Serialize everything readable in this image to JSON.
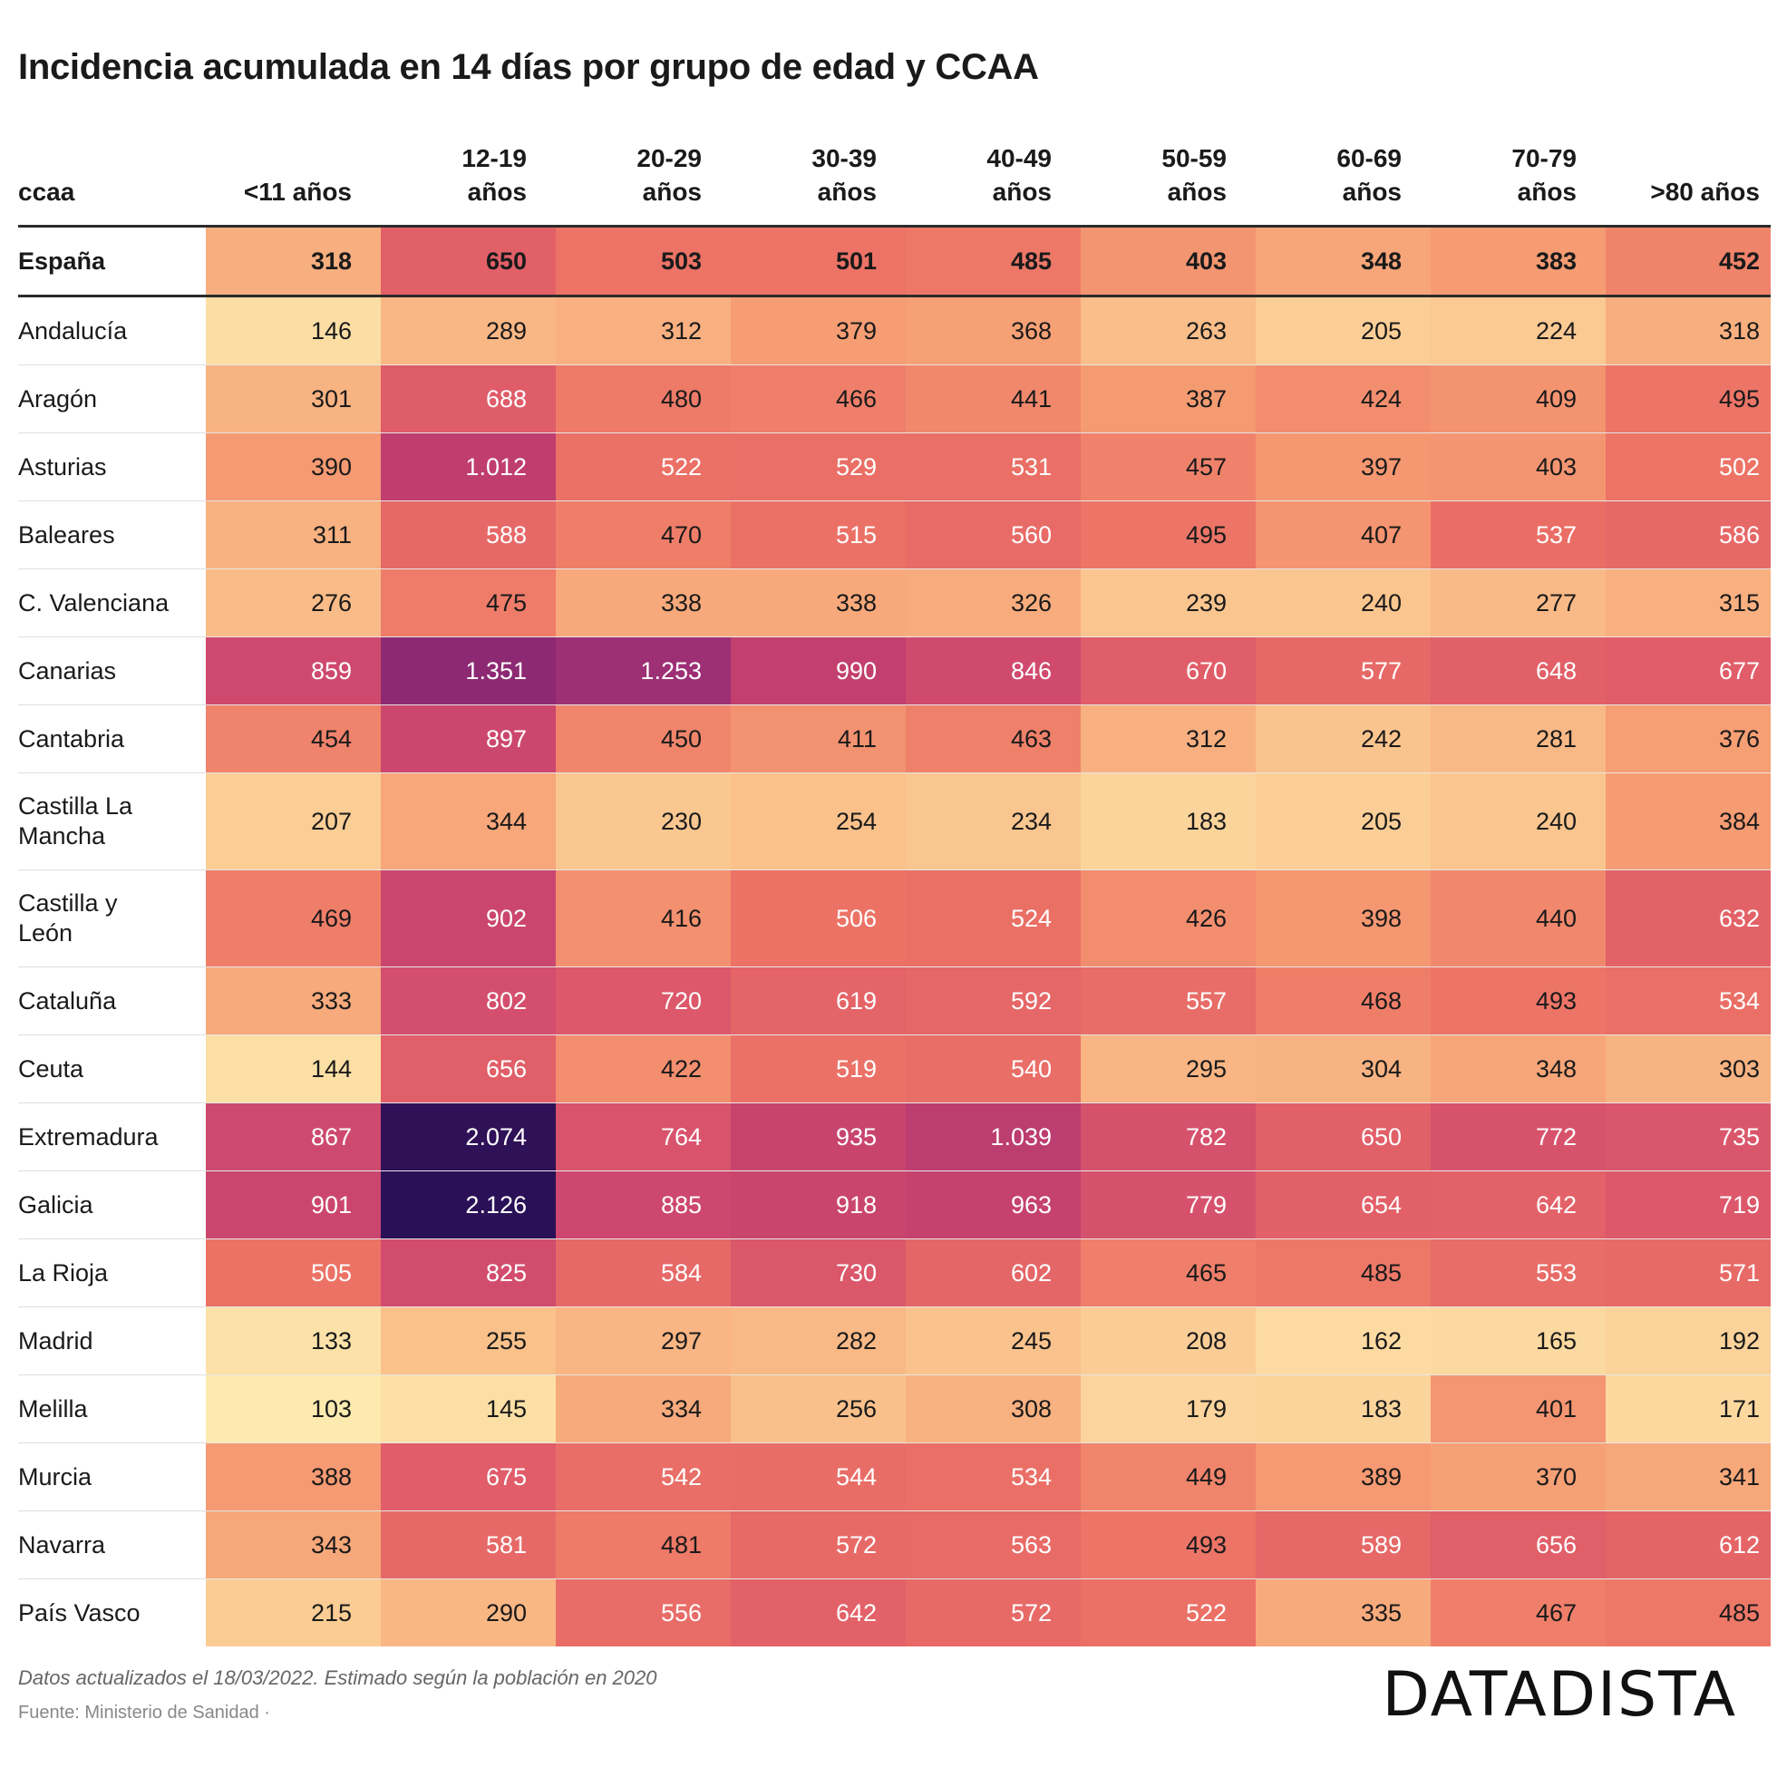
{
  "title": "Incidencia acumulada en 14 días por grupo de edad y CCAA",
  "footnote": "Datos actualizados el 18/03/2022. Estimado según la población en 2020",
  "source": "Fuente: Ministerio de Sanidad · ",
  "logo": "DATADISTA",
  "color_scale": {
    "low": "#fce6a6",
    "mid_low": "#f9a77a",
    "mid": "#ea6b65",
    "mid_high": "#c23f6e",
    "high": "#8d2d7a",
    "max": "#2a1056"
  },
  "chart_data": {
    "type": "heatmap",
    "title": "Incidencia acumulada en 14 días por grupo de edad y CCAA",
    "row_header": "ccaa",
    "columns": [
      "<11 años",
      "12-19 años",
      "20-29 años",
      "30-39 años",
      "40-49 años",
      "50-59 años",
      "60-69 años",
      "70-79 años",
      ">80 años"
    ],
    "total": {
      "name": "España",
      "values": [
        318,
        650,
        503,
        501,
        485,
        403,
        348,
        383,
        452
      ],
      "labels": [
        "318",
        "650",
        "503",
        "501",
        "485",
        "403",
        "348",
        "383",
        "452"
      ]
    },
    "rows": [
      {
        "name": "Andalucía",
        "values": [
          146,
          289,
          312,
          379,
          368,
          263,
          205,
          224,
          318
        ],
        "labels": [
          "146",
          "289",
          "312",
          "379",
          "368",
          "263",
          "205",
          "224",
          "318"
        ]
      },
      {
        "name": "Aragón",
        "values": [
          301,
          688,
          480,
          466,
          441,
          387,
          424,
          409,
          495
        ],
        "labels": [
          "301",
          "688",
          "480",
          "466",
          "441",
          "387",
          "424",
          "409",
          "495"
        ]
      },
      {
        "name": "Asturias",
        "values": [
          390,
          1012,
          522,
          529,
          531,
          457,
          397,
          403,
          502
        ],
        "labels": [
          "390",
          "1.012",
          "522",
          "529",
          "531",
          "457",
          "397",
          "403",
          "502"
        ]
      },
      {
        "name": "Baleares",
        "values": [
          311,
          588,
          470,
          515,
          560,
          495,
          407,
          537,
          586
        ],
        "labels": [
          "311",
          "588",
          "470",
          "515",
          "560",
          "495",
          "407",
          "537",
          "586"
        ]
      },
      {
        "name": "C. Valenciana",
        "values": [
          276,
          475,
          338,
          338,
          326,
          239,
          240,
          277,
          315
        ],
        "labels": [
          "276",
          "475",
          "338",
          "338",
          "326",
          "239",
          "240",
          "277",
          "315"
        ]
      },
      {
        "name": "Canarias",
        "values": [
          859,
          1351,
          1253,
          990,
          846,
          670,
          577,
          648,
          677
        ],
        "labels": [
          "859",
          "1.351",
          "1.253",
          "990",
          "846",
          "670",
          "577",
          "648",
          "677"
        ]
      },
      {
        "name": "Cantabria",
        "values": [
          454,
          897,
          450,
          411,
          463,
          312,
          242,
          281,
          376
        ],
        "labels": [
          "454",
          "897",
          "450",
          "411",
          "463",
          "312",
          "242",
          "281",
          "376"
        ]
      },
      {
        "name": "Castilla La Mancha",
        "values": [
          207,
          344,
          230,
          254,
          234,
          183,
          205,
          240,
          384
        ],
        "labels": [
          "207",
          "344",
          "230",
          "254",
          "234",
          "183",
          "205",
          "240",
          "384"
        ]
      },
      {
        "name": "Castilla y León",
        "values": [
          469,
          902,
          416,
          506,
          524,
          426,
          398,
          440,
          632
        ],
        "labels": [
          "469",
          "902",
          "416",
          "506",
          "524",
          "426",
          "398",
          "440",
          "632"
        ]
      },
      {
        "name": "Cataluña",
        "values": [
          333,
          802,
          720,
          619,
          592,
          557,
          468,
          493,
          534
        ],
        "labels": [
          "333",
          "802",
          "720",
          "619",
          "592",
          "557",
          "468",
          "493",
          "534"
        ]
      },
      {
        "name": "Ceuta",
        "values": [
          144,
          656,
          422,
          519,
          540,
          295,
          304,
          348,
          303
        ],
        "labels": [
          "144",
          "656",
          "422",
          "519",
          "540",
          "295",
          "304",
          "348",
          "303"
        ]
      },
      {
        "name": "Extremadura",
        "values": [
          867,
          2074,
          764,
          935,
          1039,
          782,
          650,
          772,
          735
        ],
        "labels": [
          "867",
          "2.074",
          "764",
          "935",
          "1.039",
          "782",
          "650",
          "772",
          "735"
        ]
      },
      {
        "name": "Galicia",
        "values": [
          901,
          2126,
          885,
          918,
          963,
          779,
          654,
          642,
          719
        ],
        "labels": [
          "901",
          "2.126",
          "885",
          "918",
          "963",
          "779",
          "654",
          "642",
          "719"
        ]
      },
      {
        "name": "La Rioja",
        "values": [
          505,
          825,
          584,
          730,
          602,
          465,
          485,
          553,
          571
        ],
        "labels": [
          "505",
          "825",
          "584",
          "730",
          "602",
          "465",
          "485",
          "553",
          "571"
        ]
      },
      {
        "name": "Madrid",
        "values": [
          133,
          255,
          297,
          282,
          245,
          208,
          162,
          165,
          192
        ],
        "labels": [
          "133",
          "255",
          "297",
          "282",
          "245",
          "208",
          "162",
          "165",
          "192"
        ]
      },
      {
        "name": "Melilla",
        "values": [
          103,
          145,
          334,
          256,
          308,
          179,
          183,
          401,
          171
        ],
        "labels": [
          "103",
          "145",
          "334",
          "256",
          "308",
          "179",
          "183",
          "401",
          "171"
        ]
      },
      {
        "name": "Murcia",
        "values": [
          388,
          675,
          542,
          544,
          534,
          449,
          389,
          370,
          341
        ],
        "labels": [
          "388",
          "675",
          "542",
          "544",
          "534",
          "449",
          "389",
          "370",
          "341"
        ]
      },
      {
        "name": "Navarra",
        "values": [
          343,
          581,
          481,
          572,
          563,
          493,
          589,
          656,
          612
        ],
        "labels": [
          "343",
          "581",
          "481",
          "572",
          "563",
          "493",
          "589",
          "656",
          "612"
        ]
      },
      {
        "name": "País Vasco",
        "values": [
          215,
          290,
          556,
          642,
          572,
          522,
          335,
          467,
          485
        ],
        "labels": [
          "215",
          "290",
          "556",
          "642",
          "572",
          "522",
          "335",
          "467",
          "485"
        ]
      }
    ]
  }
}
